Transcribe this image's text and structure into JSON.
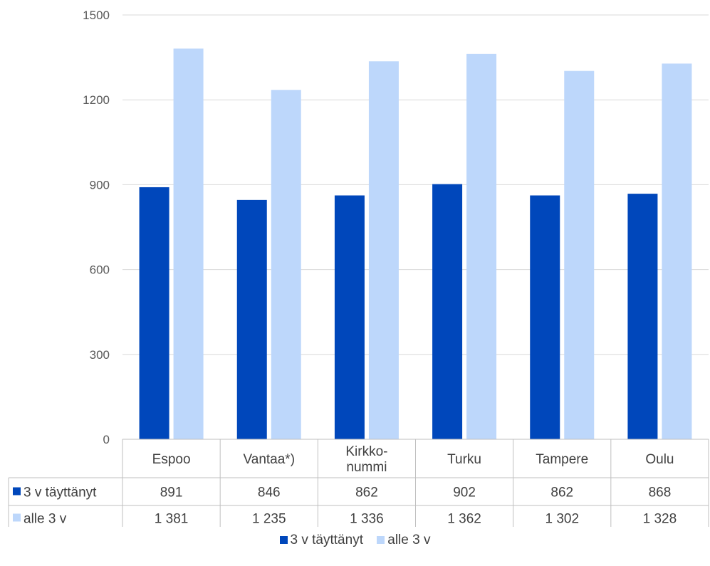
{
  "chart_data": {
    "type": "bar",
    "categories": [
      [
        "Espoo"
      ],
      [
        "Vantaa*)"
      ],
      [
        "Kirkko-",
        "nummi"
      ],
      [
        "Turku"
      ],
      [
        "Tampere"
      ],
      [
        "Oulu"
      ]
    ],
    "series": [
      {
        "name": "3 v täyttänyt",
        "color": "#0047BB",
        "values": [
          891,
          846,
          862,
          902,
          862,
          868
        ],
        "labels": [
          "891",
          "846",
          "862",
          "902",
          "862",
          "868"
        ]
      },
      {
        "name": "alle 3 v",
        "color": "#BDD7FB",
        "values": [
          1381,
          1235,
          1336,
          1362,
          1302,
          1328
        ],
        "labels": [
          "1 381",
          "1 235",
          "1 336",
          "1 362",
          "1 302",
          "1 328"
        ]
      }
    ],
    "ylim": [
      0,
      1500
    ],
    "yticks": [
      0,
      300,
      600,
      900,
      1200,
      1500
    ],
    "grid": true,
    "legend": "bottom",
    "data_table": true
  }
}
